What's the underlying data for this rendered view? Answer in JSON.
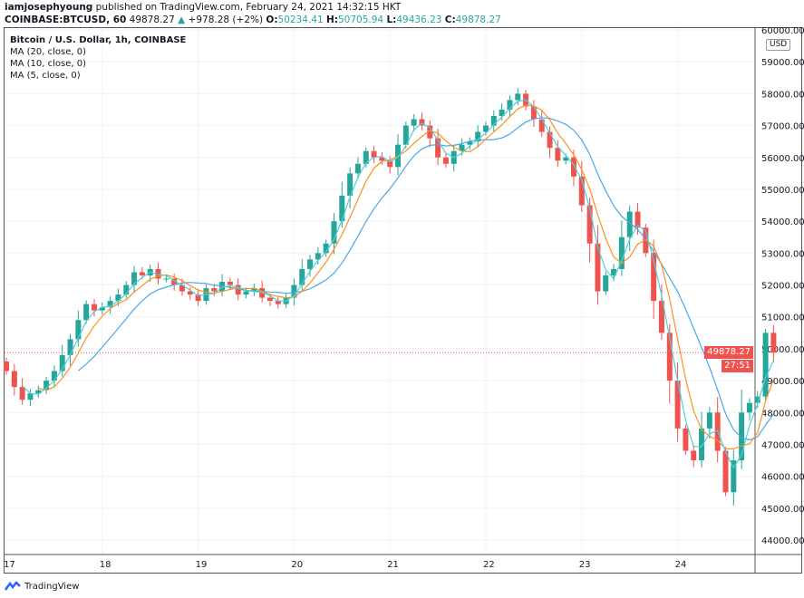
{
  "header": {
    "author": "iamjosephyoung",
    "published": "published on TradingView.com, February 24, 2021 14:32:15 HKT",
    "symbol": "COINBASE:BTCUSD, 60",
    "last": "49878.27",
    "change": "+978.28 (+2%)",
    "o_label": "O:",
    "o": "50234.41",
    "h_label": "H:",
    "h": "50705.94",
    "l_label": "L:",
    "l": "49436.23",
    "c_label": "C:",
    "c": "49878.27"
  },
  "legend": {
    "title": "Bitcoin / U.S. Dollar, 1h, COINBASE",
    "ma20": "MA (20, close, 0)",
    "ma10": "MA (10, close, 0)",
    "ma5": "MA (5, close, 0)"
  },
  "currency": "USD",
  "price_label": "49878.27",
  "timer": "27:51",
  "footer": {
    "brand": "TradingView",
    "logo_icon": "tradingview-logo-icon"
  },
  "colors": {
    "up": "#26a69a",
    "down": "#ef5350",
    "ma20": "#4aa8e8",
    "ma10": "#ff8f1f",
    "ma5": "#4dd0d8"
  },
  "chart_data": {
    "type": "candlestick",
    "title": "Bitcoin / U.S. Dollar, 1h, COINBASE",
    "ylim": [
      43500,
      60300
    ],
    "y_ticks": [
      "44000.00",
      "45000.00",
      "46000.00",
      "47000.00",
      "48000.00",
      "49000.00",
      "50000.00",
      "51000.00",
      "52000.00",
      "53000.00",
      "54000.00",
      "55000.00",
      "56000.00",
      "57000.00",
      "58000.00",
      "59000.00",
      "60000.00"
    ],
    "x_ticks": [
      "17",
      "18",
      "19",
      "20",
      "21",
      "22",
      "23",
      "24"
    ],
    "interval_hours": 2,
    "start": "Feb 17 00:00",
    "closes": [
      49300,
      48800,
      48400,
      48600,
      48700,
      49000,
      49300,
      49800,
      50300,
      50900,
      51400,
      51200,
      51300,
      51500,
      51700,
      52000,
      52400,
      52300,
      52500,
      52200,
      52200,
      52000,
      51800,
      51700,
      51500,
      51900,
      51800,
      52100,
      52000,
      51700,
      51800,
      51900,
      51600,
      51500,
      51400,
      51600,
      52000,
      52500,
      52800,
      53000,
      53300,
      54000,
      54800,
      55500,
      55800,
      56200,
      56000,
      55900,
      55700,
      56400,
      57000,
      57200,
      57000,
      56600,
      56000,
      55800,
      56200,
      56400,
      56500,
      56800,
      57000,
      57300,
      57500,
      57800,
      58000,
      57600,
      57200,
      56800,
      56300,
      55900,
      56000,
      55400,
      54500,
      53300,
      51800,
      52300,
      52500,
      53500,
      54300,
      53800,
      53000,
      51500,
      50500,
      49000,
      47500,
      46800,
      46500,
      47500,
      48000,
      46800,
      45500,
      46500,
      48000,
      48300,
      48500,
      50500,
      49878
    ],
    "series": [
      {
        "name": "MA (20, close, 0)"
      },
      {
        "name": "MA (10, close, 0)"
      },
      {
        "name": "MA (5, close, 0)"
      }
    ]
  }
}
